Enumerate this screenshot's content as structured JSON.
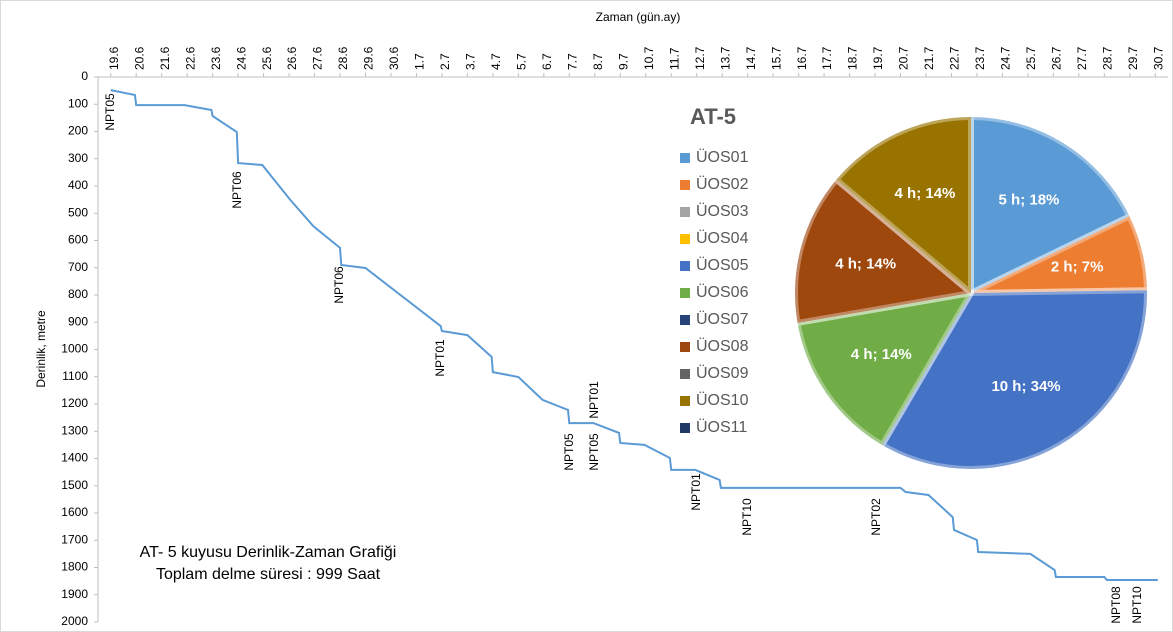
{
  "chart_data": [
    {
      "type": "line",
      "xlabel": "Zaman (gün.ay)",
      "ylabel": "Derinlik, metre",
      "text_box": [
        "AT- 5 kuyusu Derinlik-Zaman Grafiği",
        "Toplam delme süresi : 999 Saat"
      ],
      "color": "#5b9bd5",
      "x": [
        0,
        0.95,
        1,
        2.9,
        3.95,
        4,
        4.95,
        5,
        5.95,
        7.05,
        7.95,
        9,
        9.05,
        10,
        12.95,
        13,
        14,
        14.95,
        15,
        16,
        16.95,
        17.95,
        18,
        18.95,
        19.95,
        20,
        20.95,
        21.95,
        22,
        22.95,
        23.9,
        23.95,
        31,
        31.2,
        32.1,
        33.05,
        33.1,
        34,
        34.05,
        36.1,
        37.05,
        37.1,
        39,
        39.1,
        41.1
      ],
      "values": [
        48,
        66,
        103,
        103,
        121,
        143,
        202,
        316,
        323,
        451,
        547,
        627,
        690,
        701,
        914,
        932,
        947,
        1027,
        1083,
        1101,
        1185,
        1222,
        1270,
        1270,
        1306,
        1343,
        1350,
        1398,
        1442,
        1442,
        1479,
        1508,
        1508,
        1523,
        1534,
        1615,
        1662,
        1699,
        1743,
        1750,
        1809,
        1835,
        1835,
        1846,
        1846
      ],
      "xlim": [
        -0.5,
        41.5
      ],
      "xticks": [
        {
          "value": 0,
          "label": "19.6"
        },
        {
          "value": 1,
          "label": "20.6"
        },
        {
          "value": 2,
          "label": "21.6"
        },
        {
          "value": 3,
          "label": "22.6"
        },
        {
          "value": 4,
          "label": "23.6"
        },
        {
          "value": 5,
          "label": "24.6"
        },
        {
          "value": 6,
          "label": "25.6"
        },
        {
          "value": 7,
          "label": "26.6"
        },
        {
          "value": 8,
          "label": "27.6"
        },
        {
          "value": 9,
          "label": "28.6"
        },
        {
          "value": 10,
          "label": "29.6"
        },
        {
          "value": 11,
          "label": "30.6"
        },
        {
          "value": 12,
          "label": "1.7"
        },
        {
          "value": 13,
          "label": "2.7"
        },
        {
          "value": 14,
          "label": "3.7"
        },
        {
          "value": 15,
          "label": "4.7"
        },
        {
          "value": 16,
          "label": "5.7"
        },
        {
          "value": 17,
          "label": "6.7"
        },
        {
          "value": 18,
          "label": "7.7"
        },
        {
          "value": 19,
          "label": "8.7"
        },
        {
          "value": 20,
          "label": "9.7"
        },
        {
          "value": 21,
          "label": "10.7"
        },
        {
          "value": 22,
          "label": "11.7"
        },
        {
          "value": 23,
          "label": "12.7"
        },
        {
          "value": 24,
          "label": "13.7"
        },
        {
          "value": 25,
          "label": "14.7"
        },
        {
          "value": 26,
          "label": "15.7"
        },
        {
          "value": 27,
          "label": "16.7"
        },
        {
          "value": 28,
          "label": "17.7"
        },
        {
          "value": 29,
          "label": "18.7"
        },
        {
          "value": 30,
          "label": "19.7"
        },
        {
          "value": 31,
          "label": "20.7"
        },
        {
          "value": 32,
          "label": "21.7"
        },
        {
          "value": 33,
          "label": "22.7"
        },
        {
          "value": 34,
          "label": "23.7"
        },
        {
          "value": 35,
          "label": "24.7"
        },
        {
          "value": 36,
          "label": "25.7"
        },
        {
          "value": 37,
          "label": "26.7"
        },
        {
          "value": 38,
          "label": "27.7"
        },
        {
          "value": 39,
          "label": "28.7"
        },
        {
          "value": 40,
          "label": "29.7"
        },
        {
          "value": 41,
          "label": "30.7"
        }
      ],
      "ylim": [
        0,
        2000
      ],
      "y_inverted": true,
      "yticks": [
        0,
        100,
        200,
        300,
        400,
        500,
        600,
        700,
        800,
        900,
        1000,
        1100,
        1200,
        1300,
        1400,
        1500,
        1600,
        1700,
        1800,
        1900,
        2000
      ],
      "annotations": [
        "NPT05",
        "NPT06",
        "NPT06",
        "NPT01",
        "NPT05",
        "NPT01",
        "NPT05",
        "NPT01",
        "NPT10",
        "NPT02",
        "NPT08",
        "NPT10"
      ]
    },
    {
      "type": "pie",
      "title": "AT-5",
      "categories": [
        "ÜOS01",
        "ÜOS02",
        "ÜOS03",
        "ÜOS04",
        "ÜOS05",
        "ÜOS06",
        "ÜOS07",
        "ÜOS08",
        "ÜOS09",
        "ÜOS10",
        "ÜOS11"
      ],
      "values": [
        18,
        7,
        0,
        0,
        34,
        14,
        0,
        14,
        0,
        14,
        0
      ],
      "value_labels": [
        "5 h; 18%",
        "2 h; 7%",
        null,
        null,
        "10 h; 34%",
        "4 h; 14%",
        null,
        "4 h; 14%",
        null,
        "4 h; 14%",
        null
      ],
      "colors": [
        "#5b9bd5",
        "#ed7d31",
        "#a5a5a5",
        "#ffc000",
        "#4472c4",
        "#70ad47",
        "#264478",
        "#9e480e",
        "#636363",
        "#997300",
        "#1f3864"
      ]
    }
  ]
}
